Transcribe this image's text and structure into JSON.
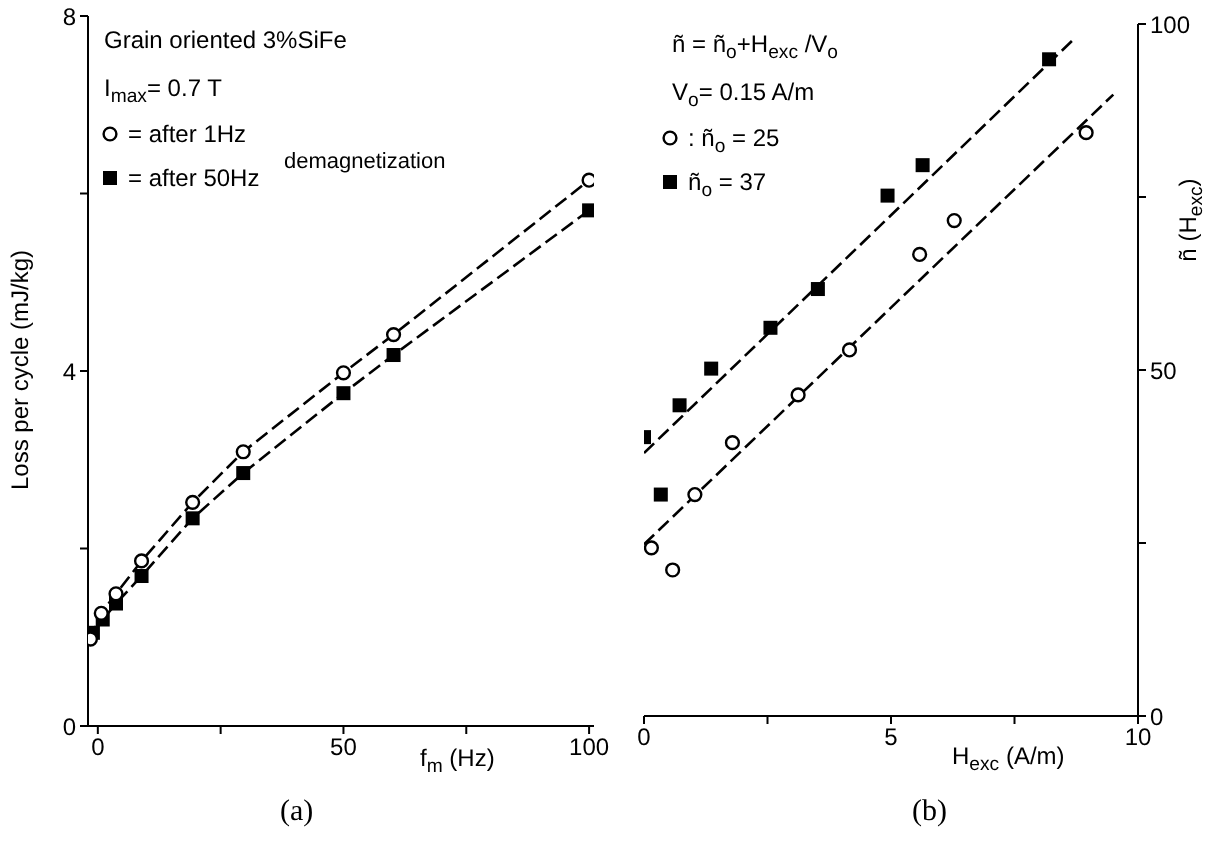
{
  "chart_data": [
    {
      "type": "line",
      "xlabel": "f$_{m}$ (Hz)",
      "ylabel": "Loss per cycle (mJ/kg)",
      "xlim": [
        -2,
        101
      ],
      "ylim": [
        0,
        8
      ],
      "xticks": [
        0,
        {
          "value": 25,
          "label": null
        },
        50,
        {
          "value": 75,
          "label": null
        },
        100
      ],
      "yticks": [
        0,
        {
          "value": 2,
          "label": null
        },
        4,
        {
          "value": 6,
          "label": null
        },
        8
      ],
      "line_style": "dashed",
      "legend": "top left",
      "annotations": [
        "Grain oriented 3%SiFe",
        "I$_{max}$= 0.7 T",
        "demagnetization",
        "(a)"
      ],
      "series": [
        {
          "name": "= after 1Hz",
          "color": "#000000",
          "marker": "circle",
          "x": [
            -1.5,
            0.7,
            3.7,
            8.9,
            19.3,
            29.6,
            50,
            60.2,
            100
          ],
          "values": [
            0.98,
            1.27,
            1.49,
            1.86,
            2.52,
            3.09,
            3.98,
            4.41,
            6.15
          ]
        },
        {
          "name": "= after 50Hz",
          "color": "#000000",
          "marker": "square",
          "x": [
            -1,
            1,
            3.7,
            8.9,
            19.3,
            29.6,
            50,
            60.2,
            100
          ],
          "values": [
            1.05,
            1.2,
            1.38,
            1.69,
            2.34,
            2.85,
            3.75,
            4.18,
            5.81
          ]
        }
      ]
    },
    {
      "type": "scatter",
      "xlabel": "H$_{exc}$ (A/m)",
      "y2label": "ñ (H$_{exc}$)",
      "xlim": [
        0,
        10
      ],
      "y2lim": [
        0,
        100
      ],
      "xticks": [
        0,
        {
          "value": 2.5,
          "label": null
        },
        5,
        {
          "value": 7.5,
          "label": null
        },
        10
      ],
      "y2ticks": [
        0,
        {
          "value": 25,
          "label": null
        },
        50,
        {
          "value": 75,
          "label": null
        },
        100
      ],
      "legend": "top left",
      "annotations": [
        "ñ = ñ$_{o}$+H$_{exc}$ /V$_{o}$",
        "V$_{o}$= 0.15 A/m",
        "(b)"
      ],
      "series": [
        {
          "name": ": ñ$_{o}$ = 25",
          "color": "#000000",
          "marker": "circle",
          "axis": "y2",
          "x": [
            0.15,
            0.58,
            1.03,
            1.79,
            3.12,
            4.16,
            5.58,
            6.28,
            8.95
          ],
          "values": [
            24.3,
            21.1,
            32,
            39.5,
            46.4,
            52.9,
            66.7,
            71.6,
            84.3
          ]
        },
        {
          "name": "ñ$_{o}$ = 37",
          "color": "#000000",
          "marker": "square",
          "axis": "y2",
          "x": [
            0,
            0.34,
            0.72,
            1.36,
            2.56,
            3.52,
            4.93,
            5.64,
            8.2
          ],
          "values": [
            40.3,
            32,
            44.9,
            50.2,
            56.1,
            61.7,
            75.2,
            79.6,
            94.9
          ]
        },
        {
          "type": "line",
          "color": "#000000",
          "marker": "none",
          "line_style": "dashed",
          "axis": "y2",
          "x": [
            0,
            9.5
          ],
          "values": [
            24.8,
            89.8
          ]
        },
        {
          "type": "line",
          "color": "#000000",
          "marker": "none",
          "line_style": "dashed",
          "axis": "y2",
          "x": [
            0,
            8.7
          ],
          "values": [
            38,
            97.8
          ]
        }
      ]
    }
  ]
}
